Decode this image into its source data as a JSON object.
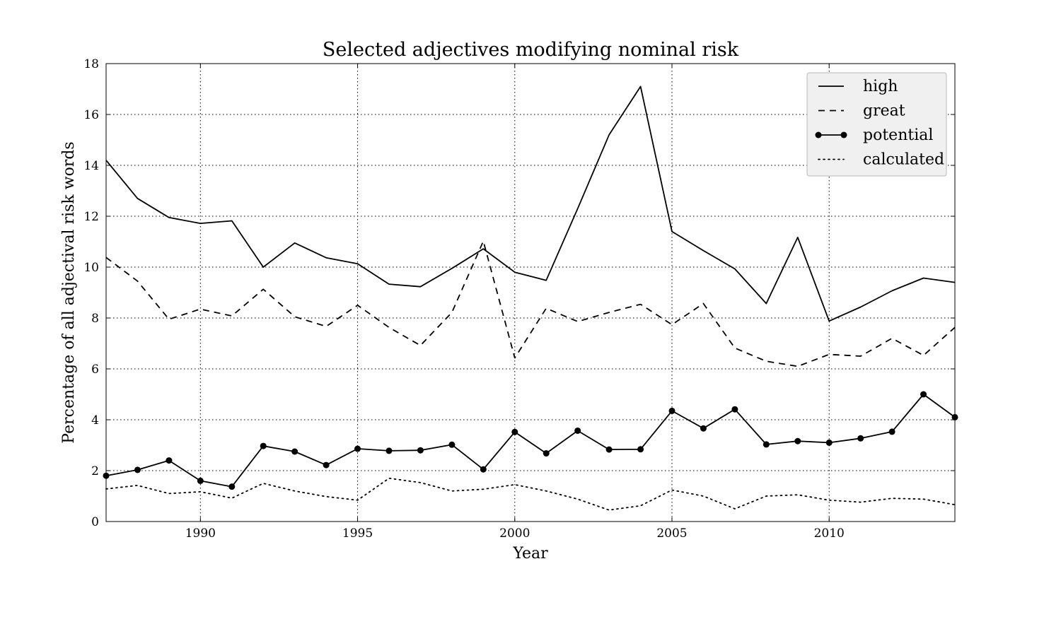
{
  "chart_data": {
    "type": "line",
    "title": "Selected adjectives modifying nominal risk",
    "xlabel": "Year",
    "ylabel": "Percentage of all adjectival risk words",
    "xlim": [
      1987,
      2014
    ],
    "ylim": [
      0,
      18
    ],
    "xticks": [
      1990,
      1995,
      2000,
      2005,
      2010
    ],
    "yticks": [
      0,
      2,
      4,
      6,
      8,
      10,
      12,
      14,
      16,
      18
    ],
    "grid": true,
    "legend_position": "top-right",
    "x": [
      1987,
      1988,
      1989,
      1990,
      1991,
      1992,
      1993,
      1994,
      1995,
      1996,
      1997,
      1998,
      1999,
      2000,
      2001,
      2002,
      2003,
      2004,
      2005,
      2006,
      2007,
      2008,
      2009,
      2010,
      2011,
      2012,
      2013,
      2014
    ],
    "series": [
      {
        "name": "high",
        "style": "solid",
        "values": [
          14.2,
          12.7,
          11.95,
          11.72,
          11.82,
          10.0,
          10.95,
          10.37,
          10.13,
          9.33,
          9.23,
          9.95,
          10.72,
          9.8,
          9.48,
          12.3,
          15.2,
          17.1,
          11.4,
          10.65,
          9.93,
          8.57,
          11.17,
          7.88,
          8.43,
          9.07,
          9.57,
          9.4
        ]
      },
      {
        "name": "great",
        "style": "dashed",
        "values": [
          10.38,
          9.45,
          7.95,
          8.35,
          8.08,
          9.13,
          8.05,
          7.67,
          8.5,
          7.63,
          6.92,
          8.22,
          11.02,
          6.43,
          8.38,
          7.86,
          8.22,
          8.54,
          7.74,
          8.57,
          6.82,
          6.3,
          6.1,
          6.57,
          6.5,
          7.2,
          6.53,
          7.63
        ]
      },
      {
        "name": "potential",
        "style": "solid-marker",
        "values": [
          1.8,
          2.03,
          2.4,
          1.6,
          1.37,
          2.97,
          2.75,
          2.22,
          2.86,
          2.78,
          2.8,
          3.02,
          2.05,
          3.52,
          2.68,
          3.57,
          2.83,
          2.84,
          4.35,
          3.66,
          4.41,
          3.03,
          3.16,
          3.1,
          3.27,
          3.53,
          5.0,
          4.1
        ]
      },
      {
        "name": "calculated",
        "style": "dotted",
        "values": [
          1.28,
          1.42,
          1.1,
          1.17,
          0.92,
          1.5,
          1.2,
          0.98,
          0.84,
          1.7,
          1.53,
          1.2,
          1.27,
          1.45,
          1.2,
          0.88,
          0.45,
          0.62,
          1.24,
          1.0,
          0.5,
          1.0,
          1.05,
          0.84,
          0.76,
          0.91,
          0.88,
          0.66
        ]
      }
    ]
  }
}
